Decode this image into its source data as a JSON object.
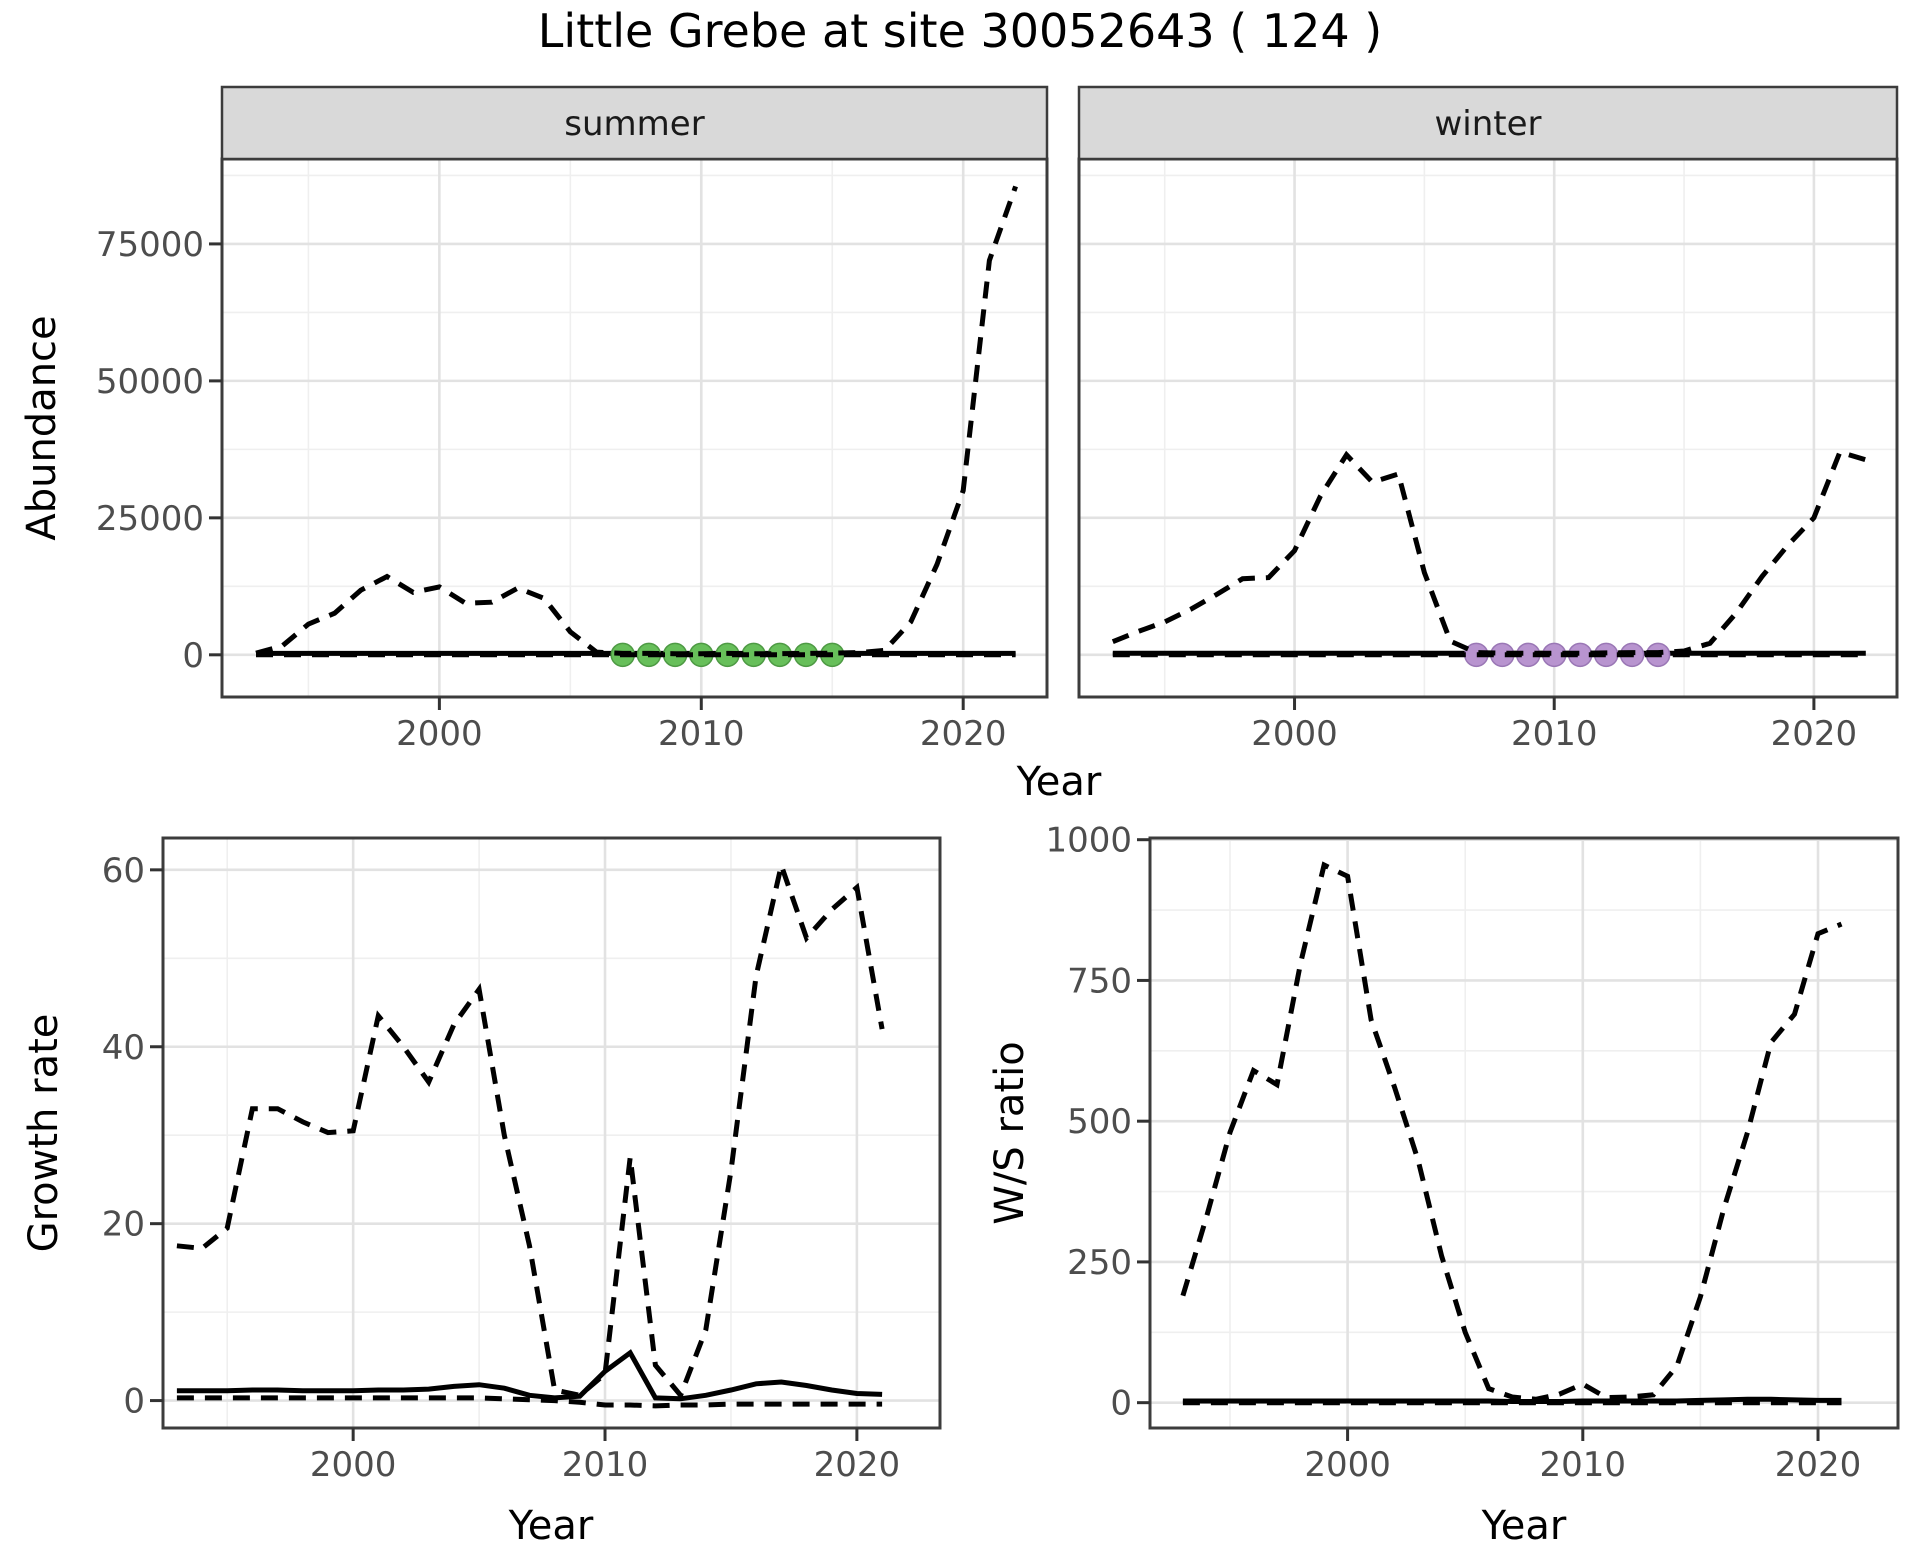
{
  "page": {
    "title": "Little Grebe at site 30052643 ( 124 )"
  },
  "labels": {
    "abundance": "Abundance",
    "growth": "Growth rate",
    "ws": "W/S ratio",
    "year": "Year"
  },
  "colors": {
    "line": "#000000",
    "summer_points": "#67bf5a",
    "summer_points_edge": "#4e9a44",
    "winter_points": "#b894cf",
    "winter_points_edge": "#9a77b5",
    "strip_bg": "#d9d9d9",
    "strip_text": "#1a1a1a",
    "grid_major": "#e2e2e2",
    "grid_minor": "#efefef",
    "panel_border": "#3c3c3c",
    "tick_mark": "#333333",
    "tick_text": "#4d4d4d"
  },
  "chart_data": [
    {
      "id": "abundance",
      "type": "line",
      "title": "Little Grebe at site 30052643 ( 124 )",
      "xlabel": "Year",
      "ylabel": "Abundance",
      "legend": "none",
      "grid": "on",
      "x": [
        1993,
        1994,
        1995,
        1996,
        1997,
        1998,
        1999,
        2000,
        2001,
        2002,
        2003,
        2004,
        2005,
        2006,
        2007,
        2008,
        2009,
        2010,
        2011,
        2012,
        2013,
        2014,
        2015,
        2016,
        2017,
        2018,
        2019,
        2020,
        2021,
        2022
      ],
      "xticks": [
        2000,
        2010,
        2020
      ],
      "xminor": [
        1995,
        2005,
        2015
      ],
      "yticks": [
        0,
        25000,
        50000,
        75000
      ],
      "yminor": [
        12500,
        37500,
        62500,
        87500
      ],
      "xlim": [
        1991.7,
        2023.2
      ],
      "ylim": [
        -7700,
        90500
      ],
      "facets": [
        {
          "label": "summer",
          "series": [
            {
              "name": "upper-ci",
              "style": "dashed",
              "values": [
                300,
                1600,
                5600,
                7600,
                11800,
                14300,
                11400,
                12400,
                9400,
                9600,
                12200,
                10300,
                4200,
                500,
                250,
                250,
                200,
                200,
                250,
                200,
                200,
                250,
                300,
                400,
                800,
                6000,
                16500,
                30000,
                72000,
                85500
              ]
            },
            {
              "name": "estimate",
              "style": "solid",
              "values": [
                250,
                250,
                250,
                250,
                250,
                250,
                250,
                250,
                250,
                250,
                250,
                250,
                250,
                250,
                250,
                250,
                250,
                250,
                250,
                250,
                250,
                250,
                250,
                250,
                250,
                250,
                250,
                250,
                250,
                250
              ]
            },
            {
              "name": "lower-ci",
              "style": "dashed",
              "values": [
                0,
                0,
                0,
                0,
                0,
                0,
                0,
                0,
                0,
                0,
                0,
                0,
                0,
                0,
                0,
                0,
                0,
                0,
                0,
                0,
                0,
                0,
                0,
                0,
                0,
                0,
                0,
                0,
                0,
                0
              ]
            }
          ],
          "zero_points": {
            "years": [
              2007,
              2008,
              2009,
              2010,
              2011,
              2012,
              2013,
              2014,
              2015
            ],
            "value": 0,
            "color_key": "summer_points",
            "edge_key": "summer_points_edge"
          }
        },
        {
          "label": "winter",
          "series": [
            {
              "name": "upper-ci",
              "style": "dashed",
              "values": [
                2400,
                4300,
                6000,
                8300,
                11000,
                13900,
                14100,
                19000,
                29000,
                36500,
                31500,
                33000,
                15000,
                2500,
                400,
                300,
                300,
                300,
                300,
                350,
                400,
                400,
                700,
                2100,
                7600,
                14300,
                20000,
                25000,
                37000,
                35600
              ]
            },
            {
              "name": "estimate",
              "style": "solid",
              "values": [
                300,
                300,
                300,
                300,
                300,
                300,
                300,
                300,
                300,
                300,
                300,
                300,
                300,
                300,
                300,
                300,
                300,
                300,
                300,
                300,
                300,
                300,
                300,
                300,
                300,
                300,
                300,
                300,
                300,
                300
              ]
            },
            {
              "name": "lower-ci",
              "style": "dashed",
              "values": [
                0,
                0,
                0,
                0,
                0,
                0,
                0,
                0,
                0,
                0,
                0,
                0,
                0,
                0,
                0,
                0,
                0,
                0,
                0,
                0,
                0,
                0,
                0,
                0,
                0,
                0,
                0,
                0,
                0,
                0
              ]
            }
          ],
          "zero_points": {
            "years": [
              2007,
              2008,
              2009,
              2010,
              2011,
              2012,
              2013,
              2014
            ],
            "value": 0,
            "color_key": "winter_points",
            "edge_key": "winter_points_edge"
          }
        }
      ]
    },
    {
      "id": "growth-rate",
      "type": "line",
      "xlabel": "Year",
      "ylabel": "Growth rate",
      "legend": "none",
      "grid": "on",
      "x": [
        1993,
        1994,
        1995,
        1996,
        1997,
        1998,
        1999,
        2000,
        2001,
        2002,
        2003,
        2004,
        2005,
        2006,
        2007,
        2008,
        2009,
        2010,
        2011,
        2012,
        2013,
        2014,
        2015,
        2016,
        2017,
        2018,
        2019,
        2020,
        2021
      ],
      "xticks": [
        2000,
        2010,
        2020
      ],
      "xminor": [
        1995,
        2005,
        2015
      ],
      "yticks": [
        0,
        20,
        40,
        60
      ],
      "yminor": [
        10,
        30,
        50
      ],
      "xlim": [
        1992.45,
        2023.3
      ],
      "ylim": [
        -3.1,
        63.6
      ],
      "series": [
        {
          "name": "upper-ci",
          "style": "dashed",
          "values": [
            17.5,
            17.2,
            19.5,
            33,
            33,
            31.5,
            30.3,
            30.5,
            43.5,
            40,
            36,
            42.5,
            46.5,
            30,
            17.5,
            1.2,
            0.6,
            3,
            27.5,
            4,
            0.6,
            8,
            26,
            48,
            60.5,
            52.3,
            55.5,
            58,
            42
          ]
        },
        {
          "name": "estimate",
          "style": "solid",
          "values": [
            1.1,
            1.1,
            1.1,
            1.2,
            1.2,
            1.1,
            1.1,
            1.1,
            1.2,
            1.2,
            1.3,
            1.6,
            1.8,
            1.4,
            0.6,
            0.3,
            0.5,
            3.3,
            5.4,
            0.3,
            0.2,
            0.6,
            1.2,
            1.9,
            2.1,
            1.7,
            1.2,
            0.8,
            0.7
          ]
        },
        {
          "name": "lower-ci",
          "style": "dashed",
          "values": [
            0.3,
            0.3,
            0.3,
            0.3,
            0.3,
            0.3,
            0.3,
            0.3,
            0.3,
            0.3,
            0.3,
            0.3,
            0.3,
            0.2,
            0.1,
            0,
            -0.2,
            -0.5,
            -0.5,
            -0.6,
            -0.5,
            -0.5,
            -0.4,
            -0.4,
            -0.4,
            -0.4,
            -0.4,
            -0.4,
            -0.4
          ]
        }
      ]
    },
    {
      "id": "ws-ratio",
      "type": "line",
      "xlabel": "Year",
      "ylabel": "W/S ratio",
      "legend": "none",
      "grid": "on",
      "x": [
        1993,
        1994,
        1995,
        1996,
        1997,
        1998,
        1999,
        2000,
        2001,
        2002,
        2003,
        2004,
        2005,
        2006,
        2007,
        2008,
        2009,
        2010,
        2011,
        2012,
        2013,
        2014,
        2015,
        2016,
        2017,
        2018,
        2019,
        2020,
        2021
      ],
      "xticks": [
        2000,
        2010,
        2020
      ],
      "xminor": [
        1995,
        2005,
        2015
      ],
      "yticks": [
        0,
        250,
        500,
        750,
        1000
      ],
      "yminor": [
        125,
        375,
        625,
        875
      ],
      "xlim": [
        1991.6,
        2023.4
      ],
      "ylim": [
        -45,
        1003
      ],
      "series": [
        {
          "name": "upper-ci",
          "style": "dashed",
          "values": [
            190,
            330,
            480,
            590,
            565,
            780,
            955,
            935,
            680,
            560,
            430,
            260,
            125,
            25,
            10,
            6,
            15,
            33,
            9,
            10,
            14,
            65,
            188,
            345,
            480,
            640,
            690,
            833,
            850
          ]
        },
        {
          "name": "estimate",
          "style": "solid",
          "values": [
            3,
            3,
            3,
            3,
            3,
            3,
            3,
            3,
            3,
            3,
            3,
            3,
            3,
            3,
            2,
            2,
            2,
            3,
            3,
            3,
            3,
            3,
            4,
            5,
            6,
            6,
            5,
            4,
            4
          ]
        },
        {
          "name": "lower-ci",
          "style": "dashed",
          "values": [
            0,
            0,
            0,
            0,
            0,
            0,
            0,
            0,
            0,
            0,
            0,
            0,
            0,
            0,
            0,
            0,
            0,
            0,
            0,
            0,
            0,
            0,
            0,
            0,
            0,
            0,
            0,
            0,
            0
          ]
        }
      ]
    }
  ]
}
